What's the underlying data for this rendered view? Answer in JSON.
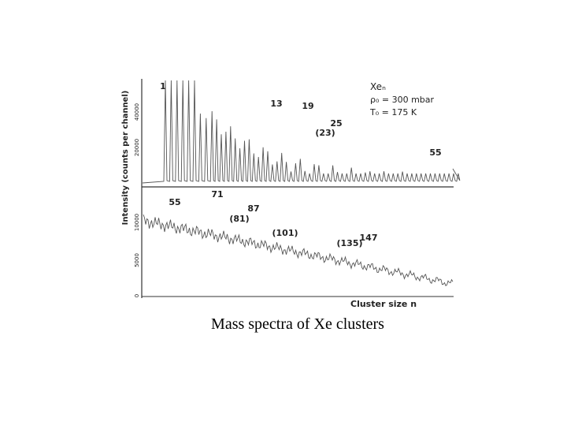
{
  "figure": {
    "y_axis_label": "Intensity (counts per channel)",
    "top_ticks": [
      "40000",
      "20000"
    ],
    "bottom_ticks": [
      "10000",
      "5000",
      "0"
    ],
    "legend": [
      "Xeₙ",
      "ρ₀ = 300 mbar",
      "T₀ = 175 K"
    ],
    "top_peaks": [
      "1",
      "13",
      "19",
      "(23)",
      "25",
      "55"
    ],
    "bottom_peaks": [
      "55",
      "71",
      "(81)",
      "87",
      "(101)",
      "(135)",
      "147"
    ],
    "x_axis_label": "Cluster size n"
  },
  "caption": "Mass spectra of Xe clusters"
}
